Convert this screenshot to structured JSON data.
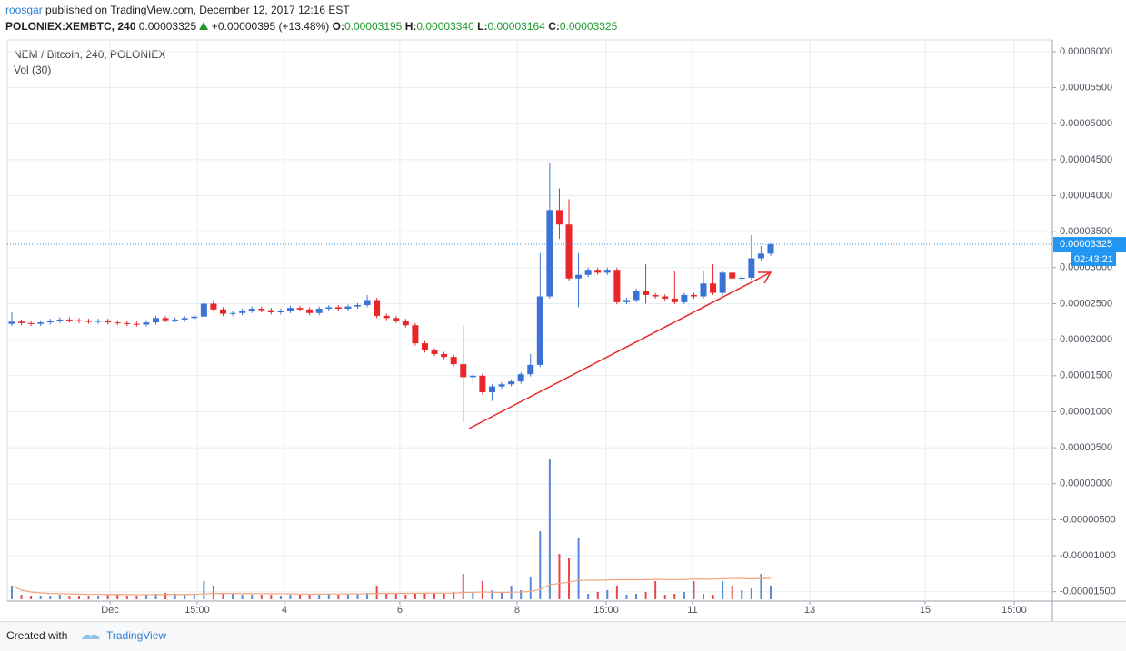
{
  "header": {
    "author": "roosgar",
    "published": "published on TradingView.com, December 12, 2017 12:16 EST",
    "symbol": "POLONIEX:XEMBTC, 240",
    "price": "0.00003325",
    "change": "+0.00000395 (+13.48%)",
    "o_label": "O:",
    "o": "0.00003195",
    "h_label": "H:",
    "h": "0.00003340",
    "l_label": "L:",
    "l": "0.00003164",
    "c_label": "C:",
    "c": "0.00003325"
  },
  "footer": {
    "created": "Created with",
    "brand": "TradingView"
  },
  "chart_data": {
    "type": "candlestick",
    "title": "NEM / Bitcoin, 240, POLONIEX",
    "subtitle": "Vol (30)",
    "countdown": "02:43:21",
    "up_color": "#3b73d5",
    "down_color": "#e8262b",
    "grid": true,
    "categories": [
      null,
      null,
      null,
      null,
      null,
      null,
      null,
      null,
      null,
      null,
      null,
      null,
      null,
      null,
      null,
      null,
      null,
      null,
      null,
      null,
      null,
      null,
      null,
      null,
      null,
      null,
      null,
      null,
      null,
      null,
      null,
      null,
      null,
      null,
      null,
      null,
      null,
      null,
      null,
      null,
      null,
      null,
      null,
      null,
      null,
      null,
      null,
      null,
      null,
      null,
      null,
      null,
      null,
      null,
      null,
      null,
      null,
      null,
      null,
      null,
      null,
      null,
      null,
      null,
      null,
      null,
      null,
      null,
      null,
      null,
      null,
      null,
      null,
      null,
      null,
      null,
      null,
      null,
      null,
      null
    ],
    "open": [
      2.22e-05,
      2.25e-05,
      2.23e-05,
      2.22e-05,
      2.24e-05,
      2.26e-05,
      2.28e-05,
      2.27e-05,
      2.26e-05,
      2.25e-05,
      2.26e-05,
      2.24e-05,
      2.23e-05,
      2.22e-05,
      2.21e-05,
      2.24e-05,
      2.3e-05,
      2.27e-05,
      2.28e-05,
      2.3e-05,
      2.32e-05,
      2.5e-05,
      2.42e-05,
      2.36e-05,
      2.37e-05,
      2.4e-05,
      2.43e-05,
      2.41e-05,
      2.38e-05,
      2.4e-05,
      2.44e-05,
      2.42e-05,
      2.37e-05,
      2.43e-05,
      2.45e-05,
      2.43e-05,
      2.46e-05,
      2.48e-05,
      2.55e-05,
      2.33e-05,
      2.3e-05,
      2.26e-05,
      2.2e-05,
      1.95e-05,
      1.85e-05,
      1.8e-05,
      1.76e-05,
      1.66e-05,
      1.48e-05,
      1.5e-05,
      1.27e-05,
      1.35e-05,
      1.38e-05,
      1.42e-05,
      1.52e-05,
      1.65e-05,
      2.6e-05,
      3.8e-05,
      3.6e-05,
      2.85e-05,
      2.9e-05,
      2.97e-05,
      2.93e-05,
      2.97e-05,
      2.52e-05,
      2.55e-05,
      2.68e-05,
      2.62e-05,
      2.6e-05,
      2.57e-05,
      2.52e-05,
      2.62e-05,
      2.6e-05,
      2.78e-05,
      2.65e-05,
      2.93e-05,
      2.85e-05,
      2.86e-05,
      3.13e-05,
      3.195e-05
    ],
    "high": [
      2.38e-05,
      2.28e-05,
      2.26e-05,
      2.27e-05,
      2.29e-05,
      2.31e-05,
      2.31e-05,
      2.3e-05,
      2.29e-05,
      2.29e-05,
      2.29e-05,
      2.27e-05,
      2.26e-05,
      2.25e-05,
      2.27e-05,
      2.33e-05,
      2.33e-05,
      2.31e-05,
      2.33e-05,
      2.35e-05,
      2.57e-05,
      2.55e-05,
      2.45e-05,
      2.4e-05,
      2.43e-05,
      2.46e-05,
      2.46e-05,
      2.44e-05,
      2.43e-05,
      2.47e-05,
      2.47e-05,
      2.45e-05,
      2.46e-05,
      2.48e-05,
      2.48e-05,
      2.49e-05,
      2.51e-05,
      2.62e-05,
      2.58e-05,
      2.36e-05,
      2.33e-05,
      2.29e-05,
      2.23e-05,
      1.98e-05,
      1.88e-05,
      1.83e-05,
      1.79e-05,
      2.2e-05,
      1.53e-05,
      1.53e-05,
      1.38e-05,
      1.41e-05,
      1.45e-05,
      1.55e-05,
      1.8e-05,
      3.2e-05,
      4.45e-05,
      4.1e-05,
      3.95e-05,
      3.2e-05,
      3e-05,
      3e-05,
      3e-05,
      3e-05,
      2.58e-05,
      2.71e-05,
      3.05e-05,
      2.65e-05,
      2.63e-05,
      2.95e-05,
      2.65e-05,
      2.65e-05,
      2.95e-05,
      3.05e-05,
      2.96e-05,
      2.96e-05,
      2.89e-05,
      3.45e-05,
      3.3e-05,
      3.34e-05
    ],
    "low": [
      2.19e-05,
      2.2e-05,
      2.19e-05,
      2.19e-05,
      2.21e-05,
      2.23e-05,
      2.24e-05,
      2.23e-05,
      2.22e-05,
      2.22e-05,
      2.21e-05,
      2.2e-05,
      2.19e-05,
      2.18e-05,
      2.18e-05,
      2.21e-05,
      2.24e-05,
      2.24e-05,
      2.25e-05,
      2.27e-05,
      2.29e-05,
      2.39e-05,
      2.33e-05,
      2.33e-05,
      2.34e-05,
      2.37e-05,
      2.38e-05,
      2.35e-05,
      2.35e-05,
      2.37e-05,
      2.39e-05,
      2.34e-05,
      2.34e-05,
      2.4e-05,
      2.4e-05,
      2.4e-05,
      2.43e-05,
      2.45e-05,
      2.3e-05,
      2.27e-05,
      2.23e-05,
      2.17e-05,
      1.92e-05,
      1.82e-05,
      1.77e-05,
      1.73e-05,
      1.63e-05,
      8.5e-06,
      1.4e-05,
      1.24e-05,
      1.15e-05,
      1.32e-05,
      1.35e-05,
      1.39e-05,
      1.49e-05,
      1.62e-05,
      2.57e-05,
      3.4e-05,
      2.82e-05,
      2.45e-05,
      2.87e-05,
      2.9e-05,
      2.9e-05,
      2.49e-05,
      2.49e-05,
      2.52e-05,
      2.5e-05,
      2.57e-05,
      2.54e-05,
      2.49e-05,
      2.49e-05,
      2.57e-05,
      2.57e-05,
      2.62e-05,
      2.62e-05,
      2.82e-05,
      2.82e-05,
      2.83e-05,
      3.1e-05,
      3.164e-05
    ],
    "close": [
      2.25e-05,
      2.23e-05,
      2.22e-05,
      2.24e-05,
      2.26e-05,
      2.28e-05,
      2.27e-05,
      2.26e-05,
      2.25e-05,
      2.26e-05,
      2.24e-05,
      2.23e-05,
      2.22e-05,
      2.21e-05,
      2.24e-05,
      2.3e-05,
      2.27e-05,
      2.28e-05,
      2.3e-05,
      2.32e-05,
      2.5e-05,
      2.42e-05,
      2.36e-05,
      2.37e-05,
      2.4e-05,
      2.43e-05,
      2.41e-05,
      2.38e-05,
      2.4e-05,
      2.44e-05,
      2.42e-05,
      2.37e-05,
      2.43e-05,
      2.45e-05,
      2.43e-05,
      2.46e-05,
      2.48e-05,
      2.55e-05,
      2.33e-05,
      2.3e-05,
      2.26e-05,
      2.2e-05,
      1.95e-05,
      1.85e-05,
      1.8e-05,
      1.76e-05,
      1.66e-05,
      1.48e-05,
      1.5e-05,
      1.27e-05,
      1.35e-05,
      1.38e-05,
      1.42e-05,
      1.52e-05,
      1.65e-05,
      2.6e-05,
      3.8e-05,
      3.6e-05,
      2.85e-05,
      2.9e-05,
      2.97e-05,
      2.93e-05,
      2.97e-05,
      2.52e-05,
      2.55e-05,
      2.68e-05,
      2.62e-05,
      2.6e-05,
      2.57e-05,
      2.52e-05,
      2.62e-05,
      2.6e-05,
      2.78e-05,
      2.65e-05,
      2.93e-05,
      2.85e-05,
      2.86e-05,
      3.13e-05,
      3.195e-05,
      3.325e-05
    ],
    "volume": [
      15,
      5,
      4,
      4,
      4,
      5,
      4,
      4,
      4,
      4,
      5,
      5,
      4,
      4,
      5,
      6,
      7,
      6,
      5,
      5,
      20,
      15,
      6,
      6,
      5,
      5,
      5,
      5,
      4,
      5,
      5,
      5,
      5,
      6,
      5,
      6,
      6,
      7,
      15,
      6,
      6,
      5,
      6,
      6,
      7,
      6,
      8,
      28,
      8,
      20,
      10,
      8,
      15,
      10,
      25,
      75,
      155,
      50,
      45,
      68,
      6,
      8,
      10,
      15,
      5,
      6,
      8,
      20,
      5,
      6,
      8,
      20,
      6,
      5,
      20,
      15,
      10,
      12,
      28,
      15
    ],
    "xlim": [
      -0.47,
      108.33
    ],
    "xticks": [
      {
        "value": 10.22,
        "label": "Dec"
      },
      {
        "value": 19.3,
        "label": "15:00"
      },
      {
        "value": 28.38,
        "label": "4"
      },
      {
        "value": 40.39,
        "label": "6"
      },
      {
        "value": 52.6,
        "label": "8"
      },
      {
        "value": 61.88,
        "label": "15:00"
      },
      {
        "value": 70.86,
        "label": "11"
      },
      {
        "value": 83.07,
        "label": "13"
      },
      {
        "value": 95.08,
        "label": "15"
      },
      {
        "value": 104.35,
        "label": "15:00"
      }
    ],
    "ylim": [
      -1.63e-05,
      6.15e-05
    ],
    "yticks": [
      {
        "value": 6e-05,
        "label": "0.00006000"
      },
      {
        "value": 5.5e-05,
        "label": "0.00005500"
      },
      {
        "value": 5e-05,
        "label": "0.00005000"
      },
      {
        "value": 4.5e-05,
        "label": "0.00004500"
      },
      {
        "value": 4e-05,
        "label": "0.00004000"
      },
      {
        "value": 3.5e-05,
        "label": "0.00003500"
      },
      {
        "value": 3e-05,
        "label": "0.00003000"
      },
      {
        "value": 2.5e-05,
        "label": "0.00002500"
      },
      {
        "value": 2e-05,
        "label": "0.00002000"
      },
      {
        "value": 1.5e-05,
        "label": "0.00001500"
      },
      {
        "value": 1e-05,
        "label": "0.00001000"
      },
      {
        "value": 5e-06,
        "label": "0.00000500"
      },
      {
        "value": 0,
        "label": "0.00000000"
      },
      {
        "value": -5e-06,
        "label": "-0.00000500"
      },
      {
        "value": -1e-05,
        "label": "-0.00001000"
      },
      {
        "value": -1.5e-05,
        "label": "-0.00001500"
      }
    ]
  }
}
